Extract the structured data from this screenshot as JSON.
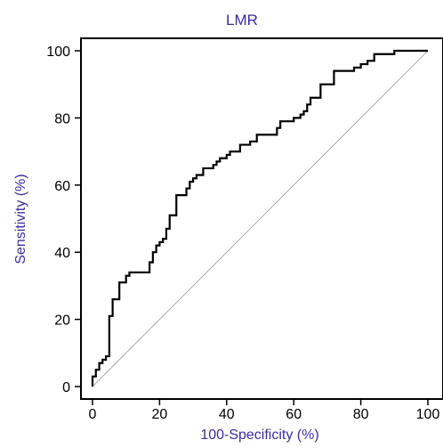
{
  "chart_data": {
    "type": "line",
    "title": "LMR",
    "xlabel": "100-Specificity (%)",
    "ylabel": "Sensitivity (%)",
    "xlim": [
      0,
      100
    ],
    "ylim": [
      0,
      100
    ],
    "xticks": [
      0,
      20,
      40,
      60,
      80,
      100
    ],
    "yticks": [
      0,
      20,
      40,
      60,
      80,
      100
    ],
    "grid": false,
    "colors": {
      "title": "#3a2f9a",
      "xlabel": "#3a2f9a",
      "ylabel": "#3a2f9a",
      "curve": "#000000",
      "diagonal": "#9a9a9a",
      "axis": "#000000"
    },
    "series": [
      {
        "kind": "roc-curve",
        "x": [
          0,
          0,
          1,
          1,
          2,
          2,
          3,
          3,
          4,
          4,
          5,
          5,
          6,
          6,
          8,
          8,
          10,
          10,
          11,
          11,
          17,
          17,
          18,
          18,
          19,
          19,
          20,
          20,
          21,
          21,
          22,
          22,
          23,
          23,
          25,
          25,
          28,
          28,
          29,
          29,
          30,
          30,
          31,
          31,
          33,
          33,
          36,
          36,
          37,
          37,
          38,
          38,
          40,
          40,
          41,
          41,
          44,
          44,
          47,
          47,
          49,
          49,
          55,
          55,
          56,
          56,
          60,
          60,
          62,
          62,
          63,
          63,
          64,
          64,
          65,
          65,
          68,
          68,
          72,
          72,
          78,
          78,
          80,
          80,
          82,
          82,
          84,
          84,
          90,
          90,
          100
        ],
        "y": [
          0,
          3,
          3,
          5,
          5,
          7,
          7,
          8,
          8,
          9,
          9,
          21,
          21,
          26,
          26,
          31,
          31,
          33,
          33,
          34,
          34,
          37,
          37,
          40,
          40,
          42,
          42,
          43,
          43,
          44,
          44,
          47,
          47,
          51,
          51,
          57,
          57,
          59,
          59,
          61,
          61,
          62,
          62,
          63,
          63,
          65,
          65,
          66,
          66,
          67,
          67,
          68,
          68,
          69,
          69,
          70,
          70,
          72,
          72,
          73,
          73,
          75,
          75,
          77,
          77,
          79,
          79,
          80,
          80,
          81,
          81,
          82,
          82,
          84,
          84,
          86,
          86,
          90,
          90,
          94,
          94,
          95,
          95,
          96,
          96,
          97,
          97,
          99,
          99,
          100,
          100
        ]
      },
      {
        "kind": "reference-diagonal",
        "x": [
          0,
          100
        ],
        "y": [
          0,
          100
        ]
      }
    ]
  }
}
